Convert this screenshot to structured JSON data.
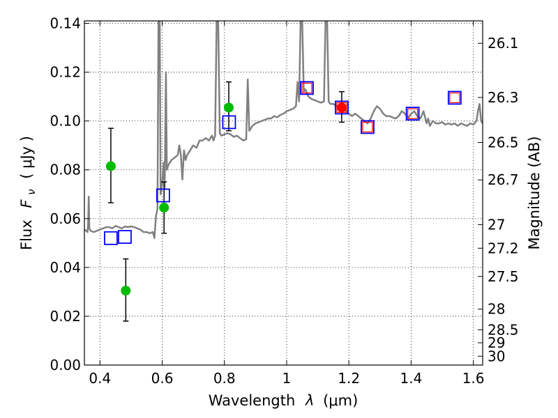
{
  "chart_data": {
    "type": "scatter",
    "xlabel_text": "Wavelength",
    "xlabel_sym": "λ",
    "xlabel_unit": "(μm)",
    "ylabel_text": "Flux",
    "ylabel_sym": "F",
    "ylabel_sub": "ν",
    "ylabel_unit": "( μJy )",
    "y2label": "Magnitude (AB)",
    "xlim": [
      0.35,
      1.63
    ],
    "ylim": [
      0.0,
      0.141
    ],
    "grid": true,
    "x_ticks": [
      0.4,
      0.6,
      0.8,
      1.0,
      1.2,
      1.4,
      1.6
    ],
    "x_tick_labels": [
      "0.4",
      "0.6",
      "0.8",
      "1",
      "1.2",
      "1.4",
      "1.6"
    ],
    "y_ticks": [
      0.0,
      0.02,
      0.04,
      0.06,
      0.08,
      0.1,
      0.12,
      0.14
    ],
    "y_tick_labels": [
      "0.00",
      "0.02",
      "0.04",
      "0.06",
      "0.08",
      "0.10",
      "0.12",
      "0.14"
    ],
    "mag_ticks": [
      {
        "label": "26.1",
        "mag": 26.1
      },
      {
        "label": "26.3",
        "mag": 26.3
      },
      {
        "label": "26.5",
        "mag": 26.5
      },
      {
        "label": "26.7",
        "mag": 26.7
      },
      {
        "label": "27",
        "mag": 27.0
      },
      {
        "label": "27.2",
        "mag": 27.2
      },
      {
        "label": "27.5",
        "mag": 27.5
      },
      {
        "label": "28",
        "mag": 28.0
      },
      {
        "label": "28.5",
        "mag": 28.5
      },
      {
        "label": "29",
        "mag": 29.0
      },
      {
        "label": "30",
        "mag": 30.0
      }
    ],
    "colors": {
      "spectrum": "#808080",
      "green_points": "#00bb00",
      "red_points": "#ff0000",
      "blue_squares": "#0000ff",
      "red_squares": "#ff0000",
      "errorbars": "#000000"
    },
    "spectrum": [
      [
        0.35,
        0.0555
      ],
      [
        0.356,
        0.055
      ],
      [
        0.36,
        0.0545
      ],
      [
        0.362,
        0.058
      ],
      [
        0.364,
        0.069
      ],
      [
        0.366,
        0.056
      ],
      [
        0.37,
        0.055
      ],
      [
        0.38,
        0.0545
      ],
      [
        0.39,
        0.055
      ],
      [
        0.4,
        0.0555
      ],
      [
        0.41,
        0.056
      ],
      [
        0.42,
        0.0565
      ],
      [
        0.43,
        0.0565
      ],
      [
        0.44,
        0.056
      ],
      [
        0.45,
        0.057
      ],
      [
        0.46,
        0.0565
      ],
      [
        0.47,
        0.056
      ],
      [
        0.48,
        0.0568
      ],
      [
        0.49,
        0.0565
      ],
      [
        0.5,
        0.0568
      ],
      [
        0.51,
        0.0565
      ],
      [
        0.52,
        0.056
      ],
      [
        0.53,
        0.0555
      ],
      [
        0.54,
        0.0545
      ],
      [
        0.55,
        0.0545
      ],
      [
        0.56,
        0.054
      ],
      [
        0.57,
        0.0545
      ],
      [
        0.575,
        0.052
      ],
      [
        0.58,
        0.061
      ],
      [
        0.585,
        0.064
      ],
      [
        0.588,
        0.141
      ],
      [
        0.592,
        0.141
      ],
      [
        0.595,
        0.07
      ],
      [
        0.6,
        0.074
      ],
      [
        0.605,
        0.083
      ],
      [
        0.608,
        0.072
      ],
      [
        0.612,
        0.12
      ],
      [
        0.615,
        0.08
      ],
      [
        0.62,
        0.082
      ],
      [
        0.625,
        0.083
      ],
      [
        0.63,
        0.084
      ],
      [
        0.64,
        0.085
      ],
      [
        0.65,
        0.086
      ],
      [
        0.655,
        0.09
      ],
      [
        0.66,
        0.086
      ],
      [
        0.665,
        0.076
      ],
      [
        0.67,
        0.088
      ],
      [
        0.675,
        0.084
      ],
      [
        0.68,
        0.086
      ],
      [
        0.69,
        0.088
      ],
      [
        0.7,
        0.09
      ],
      [
        0.71,
        0.089
      ],
      [
        0.72,
        0.092
      ],
      [
        0.73,
        0.092
      ],
      [
        0.74,
        0.093
      ],
      [
        0.75,
        0.092
      ],
      [
        0.76,
        0.094
      ],
      [
        0.765,
        0.092
      ],
      [
        0.77,
        0.094
      ],
      [
        0.775,
        0.141
      ],
      [
        0.78,
        0.141
      ],
      [
        0.785,
        0.095
      ],
      [
        0.79,
        0.094
      ],
      [
        0.8,
        0.0945
      ],
      [
        0.81,
        0.095
      ],
      [
        0.82,
        0.0945
      ],
      [
        0.83,
        0.0935
      ],
      [
        0.84,
        0.094
      ],
      [
        0.85,
        0.093
      ],
      [
        0.86,
        0.092
      ],
      [
        0.87,
        0.0925
      ],
      [
        0.875,
        0.117
      ],
      [
        0.88,
        0.096
      ],
      [
        0.89,
        0.098
      ],
      [
        0.9,
        0.099
      ],
      [
        0.91,
        0.0995
      ],
      [
        0.92,
        0.1
      ],
      [
        0.93,
        0.1005
      ],
      [
        0.94,
        0.101
      ],
      [
        0.95,
        0.101
      ],
      [
        0.96,
        0.102
      ],
      [
        0.97,
        0.1015
      ],
      [
        0.98,
        0.1025
      ],
      [
        0.99,
        0.103
      ],
      [
        1.0,
        0.104
      ],
      [
        1.01,
        0.1045
      ],
      [
        1.02,
        0.105
      ],
      [
        1.03,
        0.106
      ],
      [
        1.035,
        0.116
      ],
      [
        1.04,
        0.108
      ],
      [
        1.045,
        0.141
      ],
      [
        1.05,
        0.141
      ],
      [
        1.055,
        0.112
      ],
      [
        1.06,
        0.113
      ],
      [
        1.07,
        0.11
      ],
      [
        1.08,
        0.109
      ],
      [
        1.09,
        0.1085
      ],
      [
        1.1,
        0.108
      ],
      [
        1.11,
        0.1075
      ],
      [
        1.12,
        0.108
      ],
      [
        1.125,
        0.141
      ],
      [
        1.13,
        0.141
      ],
      [
        1.135,
        0.108
      ],
      [
        1.14,
        0.107
      ],
      [
        1.15,
        0.107
      ],
      [
        1.16,
        0.106
      ],
      [
        1.17,
        0.106
      ],
      [
        1.18,
        0.1055
      ],
      [
        1.19,
        0.104
      ],
      [
        1.2,
        0.103
      ],
      [
        1.21,
        0.102
      ],
      [
        1.22,
        0.103
      ],
      [
        1.23,
        0.102
      ],
      [
        1.24,
        0.101
      ],
      [
        1.25,
        0.1
      ],
      [
        1.26,
        0.099
      ],
      [
        1.27,
        0.101
      ],
      [
        1.28,
        0.104
      ],
      [
        1.29,
        0.106
      ],
      [
        1.3,
        0.105
      ],
      [
        1.31,
        0.103
      ],
      [
        1.32,
        0.102
      ],
      [
        1.33,
        0.102
      ],
      [
        1.34,
        0.1015
      ],
      [
        1.35,
        0.101
      ],
      [
        1.36,
        0.102
      ],
      [
        1.37,
        0.104
      ],
      [
        1.38,
        0.103
      ],
      [
        1.39,
        0.101
      ],
      [
        1.4,
        0.103
      ],
      [
        1.41,
        0.104
      ],
      [
        1.42,
        0.102
      ],
      [
        1.43,
        0.101
      ],
      [
        1.44,
        0.104
      ],
      [
        1.45,
        0.099
      ],
      [
        1.455,
        0.101
      ],
      [
        1.46,
        0.098
      ],
      [
        1.47,
        0.1
      ],
      [
        1.48,
        0.099
      ],
      [
        1.49,
        0.099
      ],
      [
        1.5,
        0.0995
      ],
      [
        1.51,
        0.0985
      ],
      [
        1.52,
        0.099
      ],
      [
        1.53,
        0.0985
      ],
      [
        1.54,
        0.099
      ],
      [
        1.55,
        0.098
      ],
      [
        1.56,
        0.099
      ],
      [
        1.57,
        0.0985
      ],
      [
        1.58,
        0.098
      ],
      [
        1.59,
        0.099
      ],
      [
        1.6,
        0.0985
      ],
      [
        1.61,
        0.1
      ],
      [
        1.615,
        0.104
      ],
      [
        1.62,
        0.107
      ],
      [
        1.625,
        0.1
      ],
      [
        1.63,
        0.099
      ]
    ],
    "green_points": [
      {
        "x": 0.435,
        "y": 0.0815,
        "err_lo": 0.0665,
        "err_hi": 0.097
      },
      {
        "x": 0.483,
        "y": 0.0305,
        "err_lo": 0.018,
        "err_hi": 0.0435
      },
      {
        "x": 0.606,
        "y": 0.0645,
        "err_lo": 0.054,
        "err_hi": 0.075
      },
      {
        "x": 0.814,
        "y": 0.1055,
        "err_lo": 0.096,
        "err_hi": 0.116
      }
    ],
    "red_points": [
      {
        "x": 1.177,
        "y": 0.1055,
        "err_lo": 0.0995,
        "err_hi": 0.112
      }
    ],
    "blue_squares": [
      {
        "x": 0.435,
        "y": 0.052
      },
      {
        "x": 0.48,
        "y": 0.0525
      },
      {
        "x": 0.603,
        "y": 0.0695
      },
      {
        "x": 0.815,
        "y": 0.0995
      },
      {
        "x": 1.065,
        "y": 0.1135
      },
      {
        "x": 1.177,
        "y": 0.1055
      },
      {
        "x": 1.26,
        "y": 0.0975
      },
      {
        "x": 1.405,
        "y": 0.103
      },
      {
        "x": 1.54,
        "y": 0.1095
      }
    ],
    "red_squares": [
      {
        "x": 1.065,
        "y": 0.1135
      },
      {
        "x": 1.177,
        "y": 0.1055
      },
      {
        "x": 1.26,
        "y": 0.0975
      },
      {
        "x": 1.405,
        "y": 0.103
      },
      {
        "x": 1.54,
        "y": 0.1095
      }
    ]
  }
}
